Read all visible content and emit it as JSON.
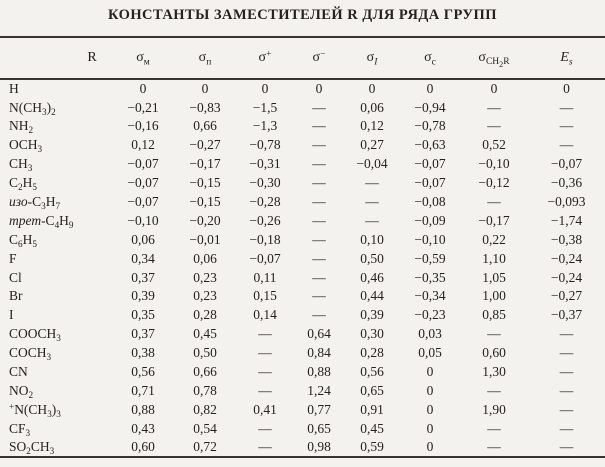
{
  "colors": {
    "paper": "#f4f2ee",
    "ink": "#26231f",
    "rule": "#38342f"
  },
  "title": "КОНСТАНТЫ ЗАМЕСТИТЕЛЕЙ R ДЛЯ РЯДА ГРУПП",
  "table": {
    "columns": [
      {
        "base": "R",
        "sup": "",
        "sub": ""
      },
      {
        "base": "σ",
        "sup": "",
        "sub": "м"
      },
      {
        "base": "σ",
        "sup": "",
        "sub": "п"
      },
      {
        "base": "σ",
        "sup": "+",
        "sub": ""
      },
      {
        "base": "σ",
        "sup": "−",
        "sub": ""
      },
      {
        "base": "σ",
        "sup": "",
        "sub": "*I*"
      },
      {
        "base": "σ",
        "sup": "",
        "sub": "с"
      },
      {
        "base": "σ",
        "sup": "*",
        "sub": "CH_2R"
      },
      {
        "base": "*E*",
        "sup": "",
        "sub": "*s*"
      }
    ],
    "rows": [
      [
        "H",
        "0",
        "0",
        "0",
        "0",
        "0",
        "0",
        "0",
        "0"
      ],
      [
        "N(CH_3)_2",
        "−0,21",
        "−0,83",
        "−1,5",
        "—",
        "0,06",
        "−0,94",
        "—",
        "—"
      ],
      [
        "NH_2",
        "−0,16",
        "0,66",
        "−1,3",
        "—",
        "0,12",
        "−0,78",
        "—",
        "—"
      ],
      [
        "OCH_3",
        "0,12",
        "−0,27",
        "−0,78",
        "—",
        "0,27",
        "−0,63",
        "0,52",
        "—"
      ],
      [
        "CH_3",
        "−0,07",
        "−0,17",
        "−0,31",
        "—",
        "−0,04",
        "−0,07",
        "−0,10",
        "−0,07"
      ],
      [
        "C_2H_5",
        "−0,07",
        "−0,15",
        "−0,30",
        "—",
        "—",
        "−0,07",
        "−0,12",
        "−0,36"
      ],
      [
        "*изо*-C_3H_7",
        "−0,07",
        "−0,15",
        "−0,28",
        "—",
        "—",
        "−0,08",
        "—",
        "−0,093"
      ],
      [
        "*трет*-C_4H_9",
        "−0,10",
        "−0,20",
        "−0,26",
        "—",
        "—",
        "−0,09",
        "−0,17",
        "−1,74"
      ],
      [
        "C_6H_5",
        "0,06",
        "−0,01",
        "−0,18",
        "—",
        "0,10",
        "−0,10",
        "0,22",
        "−0,38"
      ],
      [
        "F",
        "0,34",
        "0,06",
        "−0,07",
        "—",
        "0,50",
        "−0,59",
        "1,10",
        "−0,24"
      ],
      [
        "Cl",
        "0,37",
        "0,23",
        "0,11",
        "—",
        "0,46",
        "−0,35",
        "1,05",
        "−0,24"
      ],
      [
        "Br",
        "0,39",
        "0,23",
        "0,15",
        "—",
        "0,44",
        "−0,34",
        "1,00",
        "−0,27"
      ],
      [
        "I",
        "0,35",
        "0,28",
        "0,14",
        "—",
        "0,39",
        "−0,23",
        "0,85",
        "−0,37"
      ],
      [
        "COOCH_3",
        "0,37",
        "0,45",
        "—",
        "0,64",
        "0,30",
        "0,03",
        "—",
        "—"
      ],
      [
        "COCH_3",
        "0,38",
        "0,50",
        "—",
        "0,84",
        "0,28",
        "0,05",
        "0,60",
        "—"
      ],
      [
        "CN",
        "0,56",
        "0,66",
        "—",
        "0,88",
        "0,56",
        "0",
        "1,30",
        "—"
      ],
      [
        "NO_2",
        "0,71",
        "0,78",
        "—",
        "1,24",
        "0,65",
        "0",
        "—",
        "—"
      ],
      [
        "^+N(CH_3)_3",
        "0,88",
        "0,82",
        "0,41",
        "0,77",
        "0,91",
        "0",
        "1,90",
        "—"
      ],
      [
        "CF_3",
        "0,43",
        "0,54",
        "—",
        "0,65",
        "0,45",
        "0",
        "—",
        "—"
      ],
      [
        "SO_2CH_3",
        "0,60",
        "0,72",
        "—",
        "0,98",
        "0,59",
        "0",
        "—",
        "—"
      ]
    ]
  }
}
